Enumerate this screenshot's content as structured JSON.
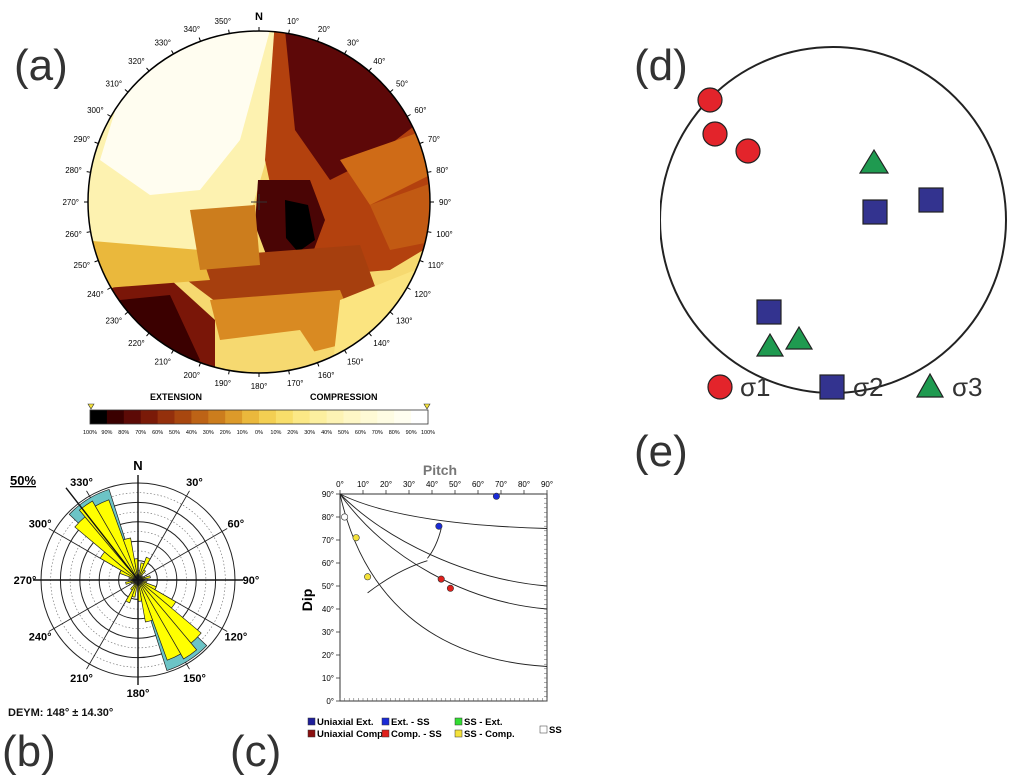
{
  "panels": {
    "a": "(a)",
    "b": "(b)",
    "c": "(c)",
    "d": "(d)",
    "e": "(e)"
  },
  "stereonet": {
    "north": "N",
    "azimuths": [
      "10°",
      "20°",
      "30°",
      "40°",
      "50°",
      "60°",
      "70°",
      "80°",
      "90°",
      "100°",
      "110°",
      "120°",
      "130°",
      "140°",
      "150°",
      "160°",
      "170°",
      "180°",
      "190°",
      "200°",
      "210°",
      "220°",
      "230°",
      "240°",
      "250°",
      "260°",
      "270°",
      "280°",
      "290°",
      "300°",
      "310°",
      "320°",
      "330°",
      "340°",
      "350°"
    ]
  },
  "colorbar": {
    "left_title": "EXTENSION",
    "right_title": "COMPRESSION",
    "ticks": [
      "100%",
      "90%",
      "80%",
      "70%",
      "60%",
      "50%",
      "40%",
      "30%",
      "20%",
      "10%",
      "0%",
      "10%",
      "20%",
      "30%",
      "40%",
      "50%",
      "60%",
      "70%",
      "80%",
      "90%",
      "100%"
    ],
    "colors": [
      "#000000",
      "#3a0000",
      "#5c0a06",
      "#7a1a08",
      "#94300c",
      "#a8470f",
      "#bd6316",
      "#cc7d1d",
      "#dc9a2a",
      "#eab83c",
      "#f3cf52",
      "#f8de6a",
      "#fbe886",
      "#fcef9f",
      "#fdf3b4",
      "#fef7c6",
      "#fefad5",
      "#fefce3",
      "#fffef0",
      "#ffffff"
    ]
  },
  "rose": {
    "north": "N",
    "max_label": "50%",
    "angles": [
      "30°",
      "60°",
      "90°",
      "120°",
      "150°",
      "180°",
      "210°",
      "240°",
      "270°",
      "300°",
      "330°"
    ],
    "petal_color": "#ffff00",
    "error_color": "#6cc4c6",
    "footer": "DEYM: 148° ± 14.30°",
    "mean_direction_deg": 148,
    "error_deg": 14.3
  },
  "pitch_plot": {
    "title": "Pitch",
    "ylabel": "Dip",
    "x_ticks": [
      "0°",
      "10°",
      "20°",
      "30°",
      "40°",
      "50°",
      "60°",
      "70°",
      "80°",
      "90°"
    ],
    "y_ticks": [
      "90°",
      "80°",
      "70°",
      "60°",
      "50°",
      "40°",
      "30°",
      "20°",
      "10°",
      "0°"
    ],
    "points": [
      {
        "pitch": 68,
        "dip": 89,
        "color": "#1a2bd6"
      },
      {
        "pitch": 43,
        "dip": 76,
        "color": "#1a2bd6"
      },
      {
        "pitch": 2,
        "dip": 80,
        "color": "#ffffff"
      },
      {
        "pitch": 7,
        "dip": 71,
        "color": "#f5e23a"
      },
      {
        "pitch": 12,
        "dip": 54,
        "color": "#f5e23a"
      },
      {
        "pitch": 44,
        "dip": 53,
        "color": "#e0201b"
      },
      {
        "pitch": 48,
        "dip": 49,
        "color": "#e0201b"
      }
    ],
    "legend": [
      {
        "label": "Uniaxial Ext.",
        "color": "#1f1f9a"
      },
      {
        "label": "Ext. - SS",
        "color": "#1a2bd6"
      },
      {
        "label": "SS - Ext.",
        "color": "#33dd33"
      },
      {
        "label": "SS",
        "color": "#ffffff"
      },
      {
        "label": "Uniaxial Comp.",
        "color": "#8b1010"
      },
      {
        "label": "Comp. - SS",
        "color": "#e0201b"
      },
      {
        "label": "SS - Comp.",
        "color": "#f5e23a"
      }
    ]
  },
  "stress_plot": {
    "legend": [
      {
        "label": "σ1",
        "shape": "circle",
        "color": "#e3242b"
      },
      {
        "label": "σ2",
        "shape": "square",
        "color": "#33338f"
      },
      {
        "label": "σ3",
        "shape": "triangle",
        "color": "#1f9a50"
      }
    ]
  }
}
